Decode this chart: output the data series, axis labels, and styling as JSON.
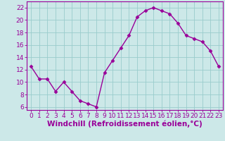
{
  "x": [
    0,
    1,
    2,
    3,
    4,
    5,
    6,
    7,
    8,
    9,
    10,
    11,
    12,
    13,
    14,
    15,
    16,
    17,
    18,
    19,
    20,
    21,
    22,
    23
  ],
  "y": [
    12.5,
    10.5,
    10.5,
    8.5,
    10.0,
    8.5,
    7.0,
    6.5,
    6.0,
    11.5,
    13.5,
    15.5,
    17.5,
    20.5,
    21.5,
    22.0,
    21.5,
    21.0,
    19.5,
    17.5,
    17.0,
    16.5,
    15.0,
    12.5
  ],
  "line_color": "#990099",
  "marker": "D",
  "markersize": 2.5,
  "linewidth": 1.0,
  "bg_color": "#cce8e8",
  "grid_color": "#99cccc",
  "xlabel": "Windchill (Refroidissement éolien,°C)",
  "xlim": [
    -0.5,
    23.5
  ],
  "ylim": [
    5.5,
    23
  ],
  "yticks": [
    6,
    8,
    10,
    12,
    14,
    16,
    18,
    20,
    22
  ],
  "xticks": [
    0,
    1,
    2,
    3,
    4,
    5,
    6,
    7,
    8,
    9,
    10,
    11,
    12,
    13,
    14,
    15,
    16,
    17,
    18,
    19,
    20,
    21,
    22,
    23
  ],
  "tick_labelsize": 6.5,
  "xlabel_fontsize": 7.5,
  "xlabel_color": "#990099",
  "tick_color": "#990099",
  "spine_color": "#990099"
}
